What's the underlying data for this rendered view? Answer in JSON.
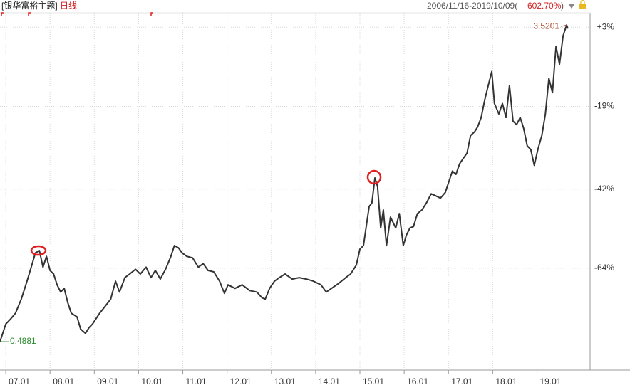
{
  "chart_data": {
    "type": "line",
    "title": "[银华富裕主题]",
    "subtitle": "日线",
    "header_right": {
      "period": "2006/11/16-2019/10/09(",
      "change": "602.70%",
      "close": ")"
    },
    "color": "#333333",
    "grid": true,
    "xlim": [
      2006.87,
      2020.2
    ],
    "xticks": [
      {
        "value": 2007,
        "label": "07.01"
      },
      {
        "value": 2008,
        "label": "08.01"
      },
      {
        "value": 2009,
        "label": "09.01"
      },
      {
        "value": 2010,
        "label": "10.01"
      },
      {
        "value": 2011,
        "label": "11.01"
      },
      {
        "value": 2012,
        "label": "12.01"
      },
      {
        "value": 2013,
        "label": "13.01"
      },
      {
        "value": 2014,
        "label": "14.01"
      },
      {
        "value": 2015,
        "label": "15.01"
      },
      {
        "value": 2016,
        "label": "16.01"
      },
      {
        "value": 2017,
        "label": "17.01"
      },
      {
        "value": 2018,
        "label": "18.01"
      },
      {
        "value": 2019,
        "label": "19.01"
      }
    ],
    "ylim": [
      -92.3,
      7
    ],
    "yticks": [
      {
        "value": 3,
        "label": "+3%"
      },
      {
        "value": -19,
        "label": "-19%"
      },
      {
        "value": -42,
        "label": "-42%"
      },
      {
        "value": -64,
        "label": "-64%"
      }
    ],
    "x": [
      2006.87,
      2007.0,
      2007.11,
      2007.22,
      2007.35,
      2007.48,
      2007.59,
      2007.67,
      2007.76,
      2007.84,
      2007.92,
      2008.0,
      2008.08,
      2008.16,
      2008.24,
      2008.32,
      2008.4,
      2008.48,
      2008.61,
      2008.69,
      2008.8,
      2008.88,
      2008.96,
      2009.12,
      2009.25,
      2009.37,
      2009.48,
      2009.57,
      2009.69,
      2009.8,
      2009.93,
      2010.04,
      2010.17,
      2010.28,
      2010.38,
      2010.49,
      2010.61,
      2010.73,
      2010.81,
      2010.9,
      2010.98,
      2011.09,
      2011.22,
      2011.35,
      2011.46,
      2011.57,
      2011.7,
      2011.83,
      2011.94,
      2012.02,
      2012.18,
      2012.34,
      2012.51,
      2012.67,
      2012.79,
      2012.86,
      2012.96,
      2013.07,
      2013.18,
      2013.31,
      2013.47,
      2013.63,
      2013.79,
      2013.95,
      2014.12,
      2014.24,
      2014.36,
      2014.52,
      2014.68,
      2014.79,
      2014.92,
      2015.0,
      2015.08,
      2015.21,
      2015.27,
      2015.34,
      2015.4,
      2015.47,
      2015.53,
      2015.6,
      2015.69,
      2015.81,
      2015.89,
      2015.98,
      2016.05,
      2016.13,
      2016.21,
      2016.3,
      2016.4,
      2016.5,
      2016.61,
      2016.72,
      2016.82,
      2016.93,
      2017.01,
      2017.09,
      2017.17,
      2017.25,
      2017.34,
      2017.42,
      2017.5,
      2017.59,
      2017.66,
      2017.74,
      2017.82,
      2017.9,
      2017.98,
      2018.04,
      2018.14,
      2018.22,
      2018.3,
      2018.38,
      2018.46,
      2018.54,
      2018.62,
      2018.7,
      2018.78,
      2018.86,
      2018.94,
      2019.02,
      2019.11,
      2019.19,
      2019.27,
      2019.35,
      2019.43,
      2019.51,
      2019.59,
      2019.67,
      2019.7
    ],
    "values": [
      -84.4,
      -79.5,
      -78.1,
      -76.5,
      -72.6,
      -67.6,
      -63.1,
      -59.7,
      -59.1,
      -63.7,
      -60.7,
      -64.6,
      -65.6,
      -68.6,
      -70.6,
      -69.6,
      -73.5,
      -76.5,
      -77.5,
      -80.9,
      -82.1,
      -80.5,
      -79.5,
      -76.5,
      -74.5,
      -72.6,
      -67.6,
      -70.6,
      -66.6,
      -65.6,
      -64.3,
      -65.6,
      -63.7,
      -66.6,
      -64.6,
      -67.0,
      -64.3,
      -60.7,
      -57.7,
      -58.3,
      -59.7,
      -60.7,
      -61.1,
      -63.7,
      -62.7,
      -64.6,
      -65.0,
      -67.6,
      -71.0,
      -68.6,
      -69.6,
      -68.6,
      -70.2,
      -70.6,
      -72.2,
      -72.6,
      -69.6,
      -67.6,
      -66.6,
      -65.6,
      -67.0,
      -66.6,
      -67.0,
      -67.6,
      -68.6,
      -70.6,
      -69.6,
      -68.2,
      -66.6,
      -65.6,
      -63.1,
      -58.7,
      -57.7,
      -46.8,
      -45.9,
      -38.9,
      -41.3,
      -52.8,
      -47.8,
      -57.7,
      -49.8,
      -52.8,
      -48.8,
      -57.7,
      -54.8,
      -52.8,
      -52.4,
      -48.8,
      -47.8,
      -45.9,
      -43.3,
      -43.9,
      -44.5,
      -42.9,
      -39.9,
      -37.0,
      -37.9,
      -35.0,
      -33.4,
      -32.0,
      -27.1,
      -26.1,
      -24.7,
      -22.1,
      -17.2,
      -13.2,
      -9.3,
      -18.2,
      -21.1,
      -18.2,
      -22.1,
      -13.2,
      -23.1,
      -24.1,
      -22.1,
      -25.1,
      -30.0,
      -31.0,
      -35.4,
      -31.0,
      -27.1,
      -21.1,
      -11.2,
      -15.2,
      -2.3,
      -7.3,
      0.6,
      3.6,
      2.6
    ],
    "annotations": [
      {
        "text": "0.4881",
        "x": 2006.87,
        "y": -84.4,
        "color": "#2e8b2e"
      },
      {
        "text": "3.5201",
        "x": 2019.67,
        "y": 3.6,
        "color": "#b0482a"
      }
    ]
  }
}
